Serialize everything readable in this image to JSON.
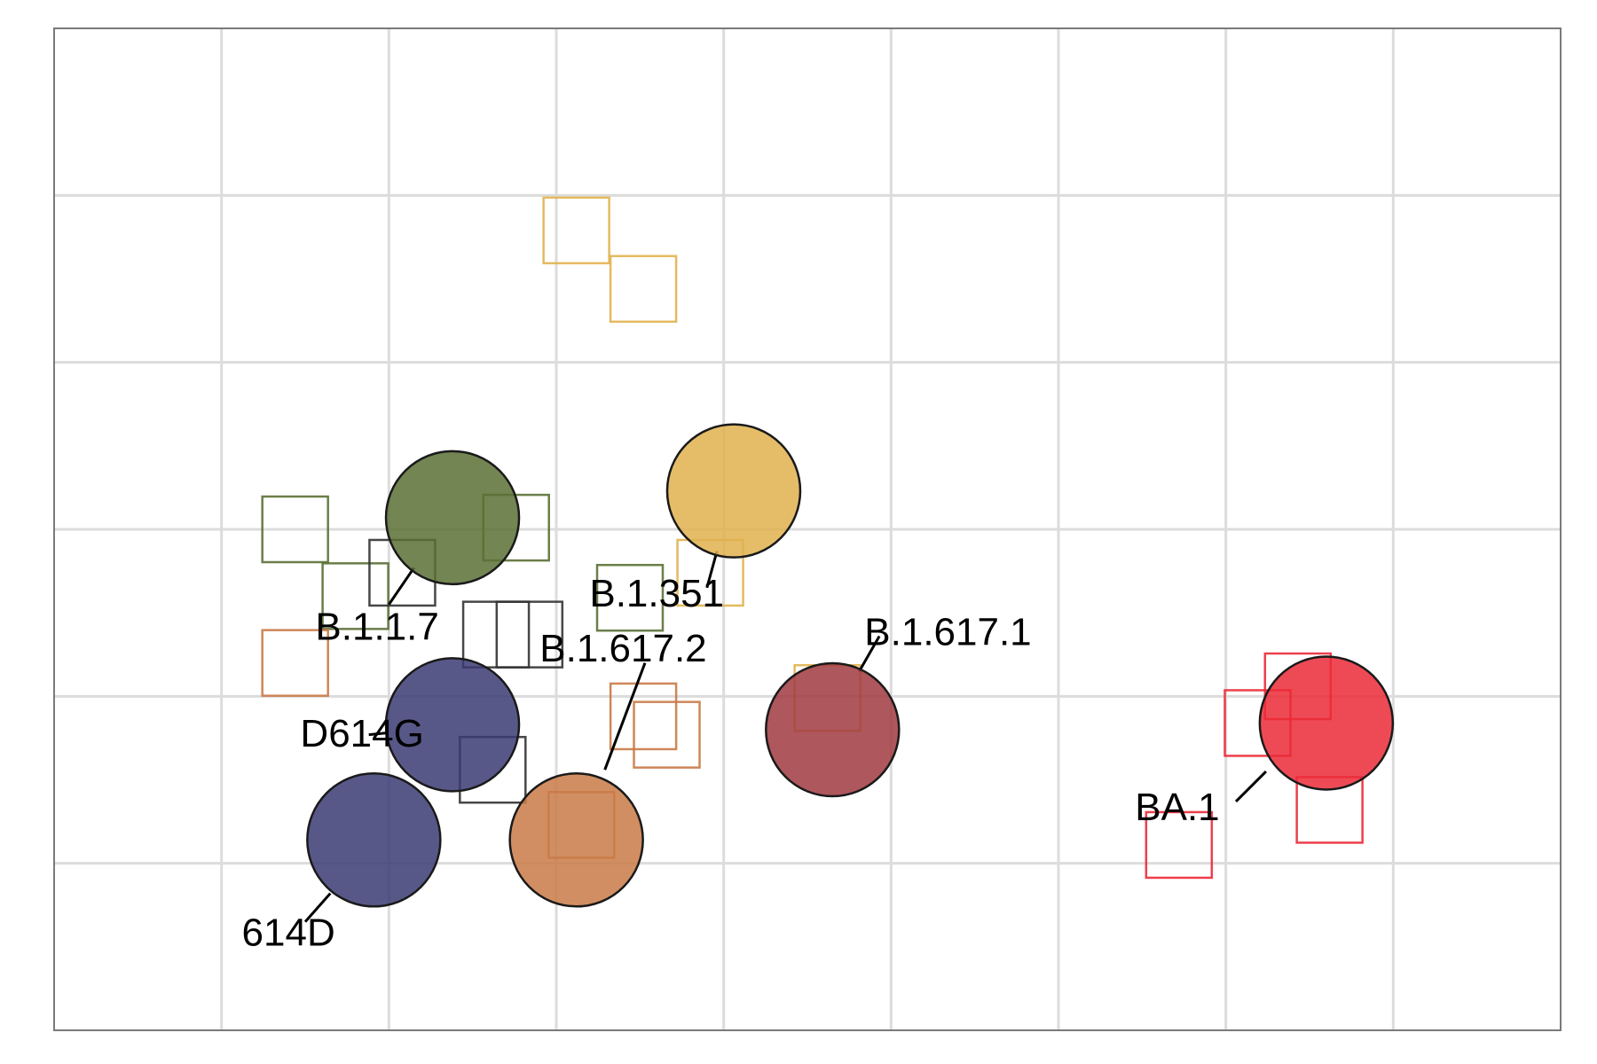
{
  "chart_data": {
    "type": "scatter",
    "title": "",
    "xlabel": "",
    "ylabel": "",
    "grid": true,
    "legend": "none",
    "xlim": [
      0,
      9
    ],
    "ylim": [
      0,
      6
    ],
    "x_ticks": [
      1,
      2,
      3,
      4,
      5,
      6,
      7,
      8
    ],
    "y_ticks": [
      1,
      2,
      3,
      4,
      5
    ],
    "antigens": [
      {
        "name": "D614G",
        "x": 2.38,
        "y": 1.83,
        "color": "#3b3b73"
      },
      {
        "name": "614D",
        "x": 1.91,
        "y": 1.14,
        "color": "#3b3b73"
      },
      {
        "name": "B.1.1.7",
        "x": 2.38,
        "y": 3.07,
        "color": "#5b7035"
      },
      {
        "name": "B.1.351",
        "x": 4.06,
        "y": 3.23,
        "color": "#e1b24f"
      },
      {
        "name": "B.1.617.2",
        "x": 3.12,
        "y": 1.14,
        "color": "#c97a47"
      },
      {
        "name": "B.1.617.1",
        "x": 4.65,
        "y": 1.8,
        "color": "#a0393f"
      },
      {
        "name": "BA.1",
        "x": 7.6,
        "y": 1.84,
        "color": "#eb2a37"
      }
    ],
    "sera": [
      {
        "x": 1.44,
        "y": 3.0,
        "color": "#5b7035"
      },
      {
        "x": 2.76,
        "y": 3.01,
        "color": "#5b7035"
      },
      {
        "x": 1.8,
        "y": 2.6,
        "color": "#5b7035"
      },
      {
        "x": 3.44,
        "y": 2.59,
        "color": "#5b7035"
      },
      {
        "x": 2.08,
        "y": 2.74,
        "color": "#333333"
      },
      {
        "x": 2.64,
        "y": 2.37,
        "color": "#333333"
      },
      {
        "x": 2.84,
        "y": 2.37,
        "color": "#333333"
      },
      {
        "x": 2.62,
        "y": 1.56,
        "color": "#333333"
      },
      {
        "x": 1.44,
        "y": 2.2,
        "color": "#c97a47"
      },
      {
        "x": 3.52,
        "y": 1.88,
        "color": "#c97a47"
      },
      {
        "x": 3.66,
        "y": 1.77,
        "color": "#c97a47"
      },
      {
        "x": 3.15,
        "y": 1.23,
        "color": "#c97a47"
      },
      {
        "x": 3.12,
        "y": 4.79,
        "color": "#e1b24f"
      },
      {
        "x": 3.52,
        "y": 4.44,
        "color": "#e1b24f"
      },
      {
        "x": 3.92,
        "y": 2.74,
        "color": "#e1b24f"
      },
      {
        "x": 4.62,
        "y": 1.99,
        "color": "#e1b24f"
      },
      {
        "x": 7.43,
        "y": 2.06,
        "color": "#eb2a37"
      },
      {
        "x": 7.19,
        "y": 1.84,
        "color": "#eb2a37"
      },
      {
        "x": 7.62,
        "y": 1.32,
        "color": "#eb2a37"
      },
      {
        "x": 6.72,
        "y": 1.11,
        "color": "#eb2a37"
      }
    ],
    "labels": [
      {
        "text": "D614G",
        "anchor_x": 1.84,
        "anchor_y": 1.76,
        "line_x1": 1.88,
        "line_y1": 1.77,
        "line_x2": 1.98,
        "line_y2": 1.78
      },
      {
        "text": "614D",
        "anchor_x": 1.4,
        "anchor_y": 0.57,
        "line_x1": 1.5,
        "line_y1": 0.65,
        "line_x2": 1.65,
        "line_y2": 0.82
      },
      {
        "text": "B.1.1.7",
        "anchor_x": 1.93,
        "anchor_y": 2.4,
        "line_x1": 2.0,
        "line_y1": 2.55,
        "line_x2": 2.15,
        "line_y2": 2.77
      },
      {
        "text": "B.1.351",
        "anchor_x": 3.6,
        "anchor_y": 2.6,
        "line_x1": 3.9,
        "line_y1": 2.65,
        "line_x2": 3.96,
        "line_y2": 2.87
      },
      {
        "text": "B.1.617.2",
        "anchor_x": 3.4,
        "anchor_y": 2.27,
        "line_x1": 3.53,
        "line_y1": 2.2,
        "line_x2": 3.29,
        "line_y2": 1.56
      },
      {
        "text": "B.1.617.1",
        "anchor_x": 5.34,
        "anchor_y": 2.37,
        "line_x1": 4.93,
        "line_y1": 2.36,
        "line_x2": 4.81,
        "line_y2": 2.15
      },
      {
        "text": "BA.1",
        "anchor_x": 6.71,
        "anchor_y": 1.32,
        "line_x1": 7.06,
        "line_y1": 1.37,
        "line_x2": 7.24,
        "line_y2": 1.55
      }
    ]
  }
}
